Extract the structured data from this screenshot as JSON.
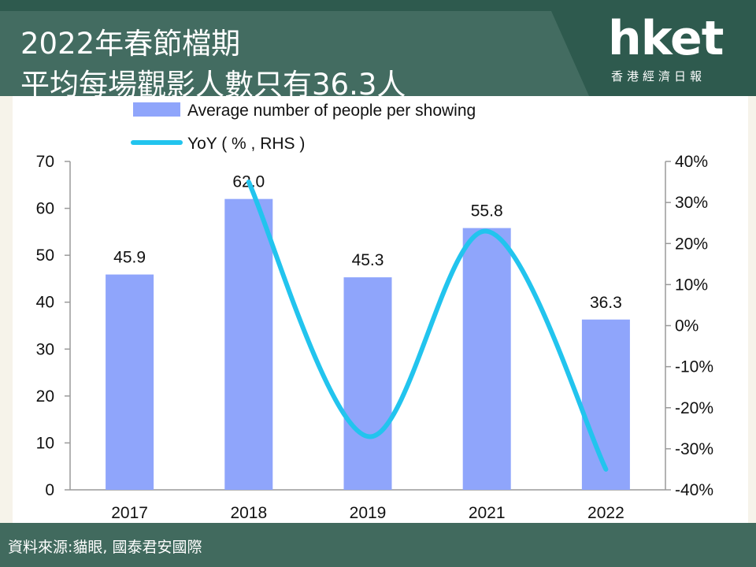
{
  "header": {
    "title_line1": "2022年春節檔期",
    "title_line2": "平均每場觀影人數只有36.3人",
    "logo_text": "hket",
    "logo_subtext": "香港經濟日報"
  },
  "footer": {
    "source": "資料來源:貓眼, 國泰君安國際"
  },
  "colors": {
    "bar": "#8fa5fb",
    "line": "#22c4ee",
    "header_bg": "#2e5a4e",
    "footer_bg": "#416a5e"
  },
  "chart_data": {
    "type": "bar",
    "categories": [
      "2017",
      "2018",
      "2019",
      "2021",
      "2022"
    ],
    "series": [
      {
        "name": "Average number of people per showing",
        "type": "bar",
        "axis": "left",
        "values": [
          45.9,
          62.0,
          45.3,
          55.8,
          36.3
        ],
        "labels": [
          "45.9",
          "62.0",
          "45.3",
          "55.8",
          "36.3"
        ]
      },
      {
        "name": "YoY ( % , RHS )",
        "type": "line",
        "axis": "right",
        "values": [
          null,
          35,
          -27,
          23,
          -35
        ]
      }
    ],
    "left_axis": {
      "min": 0,
      "max": 70,
      "ticks": [
        "0",
        "10",
        "20",
        "30",
        "40",
        "50",
        "60",
        "70"
      ]
    },
    "right_axis": {
      "min": -40,
      "max": 40,
      "ticks": [
        "-40%",
        "-30%",
        "-20%",
        "-10%",
        "0%",
        "10%",
        "20%",
        "30%",
        "40%"
      ]
    },
    "legend_position": "top-left",
    "grid": false
  }
}
